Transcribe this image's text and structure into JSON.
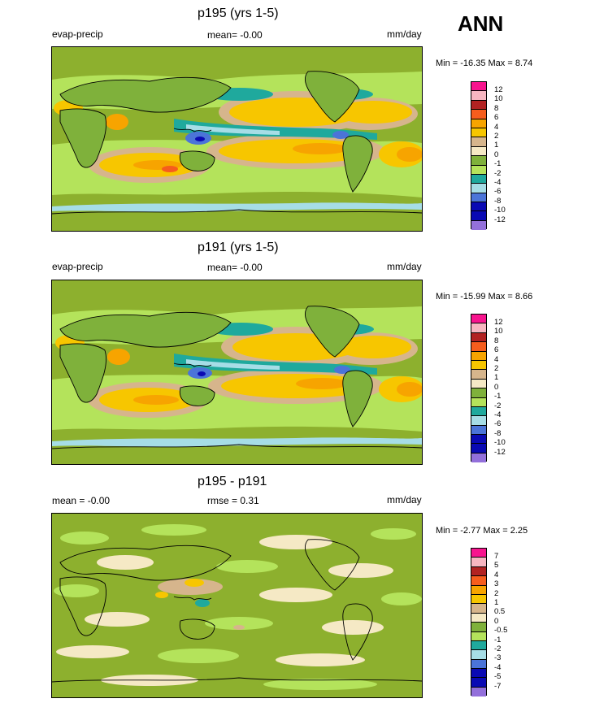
{
  "season": "ANN",
  "palette": {
    "ocean": "#8db02e",
    "land_green": "#7fb13b",
    "light_green": "#b4e35b",
    "teal": "#1fa99d",
    "light_teal": "#a6dde6",
    "blue": "#4b74d8",
    "dark_blue": "#0a0ab3",
    "purple": "#9370db",
    "tan": "#d6b58c",
    "cream": "#f5e9c5",
    "yellow": "#f7c600",
    "orange": "#f7a400",
    "red_orange": "#f65d1d",
    "dark_red": "#b22222",
    "pink": "#f7b6c1",
    "magenta": "#f7148e",
    "coast": "#000000"
  },
  "panels": [
    {
      "title": "p195 (yrs 1-5)",
      "left": "evap-precip",
      "center": "mean=  -0.00",
      "right": "mm/day",
      "minmax": "Min = -16.35 Max =   8.74"
    },
    {
      "title": "p191 (yrs 1-5)",
      "left": "evap-precip",
      "center": "mean=  -0.00",
      "right": "mm/day",
      "minmax": "Min = -15.99 Max =   8.66"
    },
    {
      "title": "p195 - p191",
      "left": "mean =  -0.00",
      "center": "rmse =   0.31",
      "right": "mm/day",
      "minmax": "Min =  -2.77 Max =   2.25"
    }
  ],
  "chart_data": [
    {
      "type": "heatmap",
      "title": "p195 (yrs 1-5)",
      "variable": "evap-precip",
      "units": "mm/day",
      "mean": -0.0,
      "min": -16.35,
      "max": 8.74,
      "colorbar_levels": [
        "12",
        "10",
        "8",
        "6",
        "4",
        "2",
        "1",
        "0",
        "-1",
        "-2",
        "-4",
        "-6",
        "-8",
        "-10",
        "-12"
      ]
    },
    {
      "type": "heatmap",
      "title": "p191 (yrs 1-5)",
      "variable": "evap-precip",
      "units": "mm/day",
      "mean": -0.0,
      "min": -15.99,
      "max": 8.66,
      "colorbar_levels": [
        "12",
        "10",
        "8",
        "6",
        "4",
        "2",
        "1",
        "0",
        "-1",
        "-2",
        "-4",
        "-6",
        "-8",
        "-10",
        "-12"
      ]
    },
    {
      "type": "heatmap",
      "title": "p195 - p191",
      "units": "mm/day",
      "mean": -0.0,
      "rmse": 0.31,
      "min": -2.77,
      "max": 2.25,
      "colorbar_levels": [
        "7",
        "5",
        "4",
        "3",
        "2",
        "1",
        "0.5",
        "0",
        "-0.5",
        "-1",
        "-2",
        "-3",
        "-4",
        "-5",
        "-7"
      ]
    }
  ],
  "colorbars": [
    {
      "colors": [
        "magenta",
        "pink",
        "dark_red",
        "red_orange",
        "orange",
        "yellow",
        "tan",
        "cream",
        "land_green",
        "light_green",
        "teal",
        "light_teal",
        "blue",
        "dark_blue",
        "dark_blue",
        "purple"
      ]
    },
    {
      "colors": [
        "magenta",
        "pink",
        "dark_red",
        "red_orange",
        "orange",
        "yellow",
        "tan",
        "cream",
        "land_green",
        "light_green",
        "teal",
        "light_teal",
        "blue",
        "dark_blue",
        "dark_blue",
        "purple"
      ]
    },
    {
      "colors": [
        "magenta",
        "pink",
        "dark_red",
        "red_orange",
        "orange",
        "yellow",
        "tan",
        "cream",
        "land_green",
        "light_green",
        "teal",
        "light_teal",
        "blue",
        "dark_blue",
        "dark_blue",
        "purple"
      ]
    }
  ]
}
